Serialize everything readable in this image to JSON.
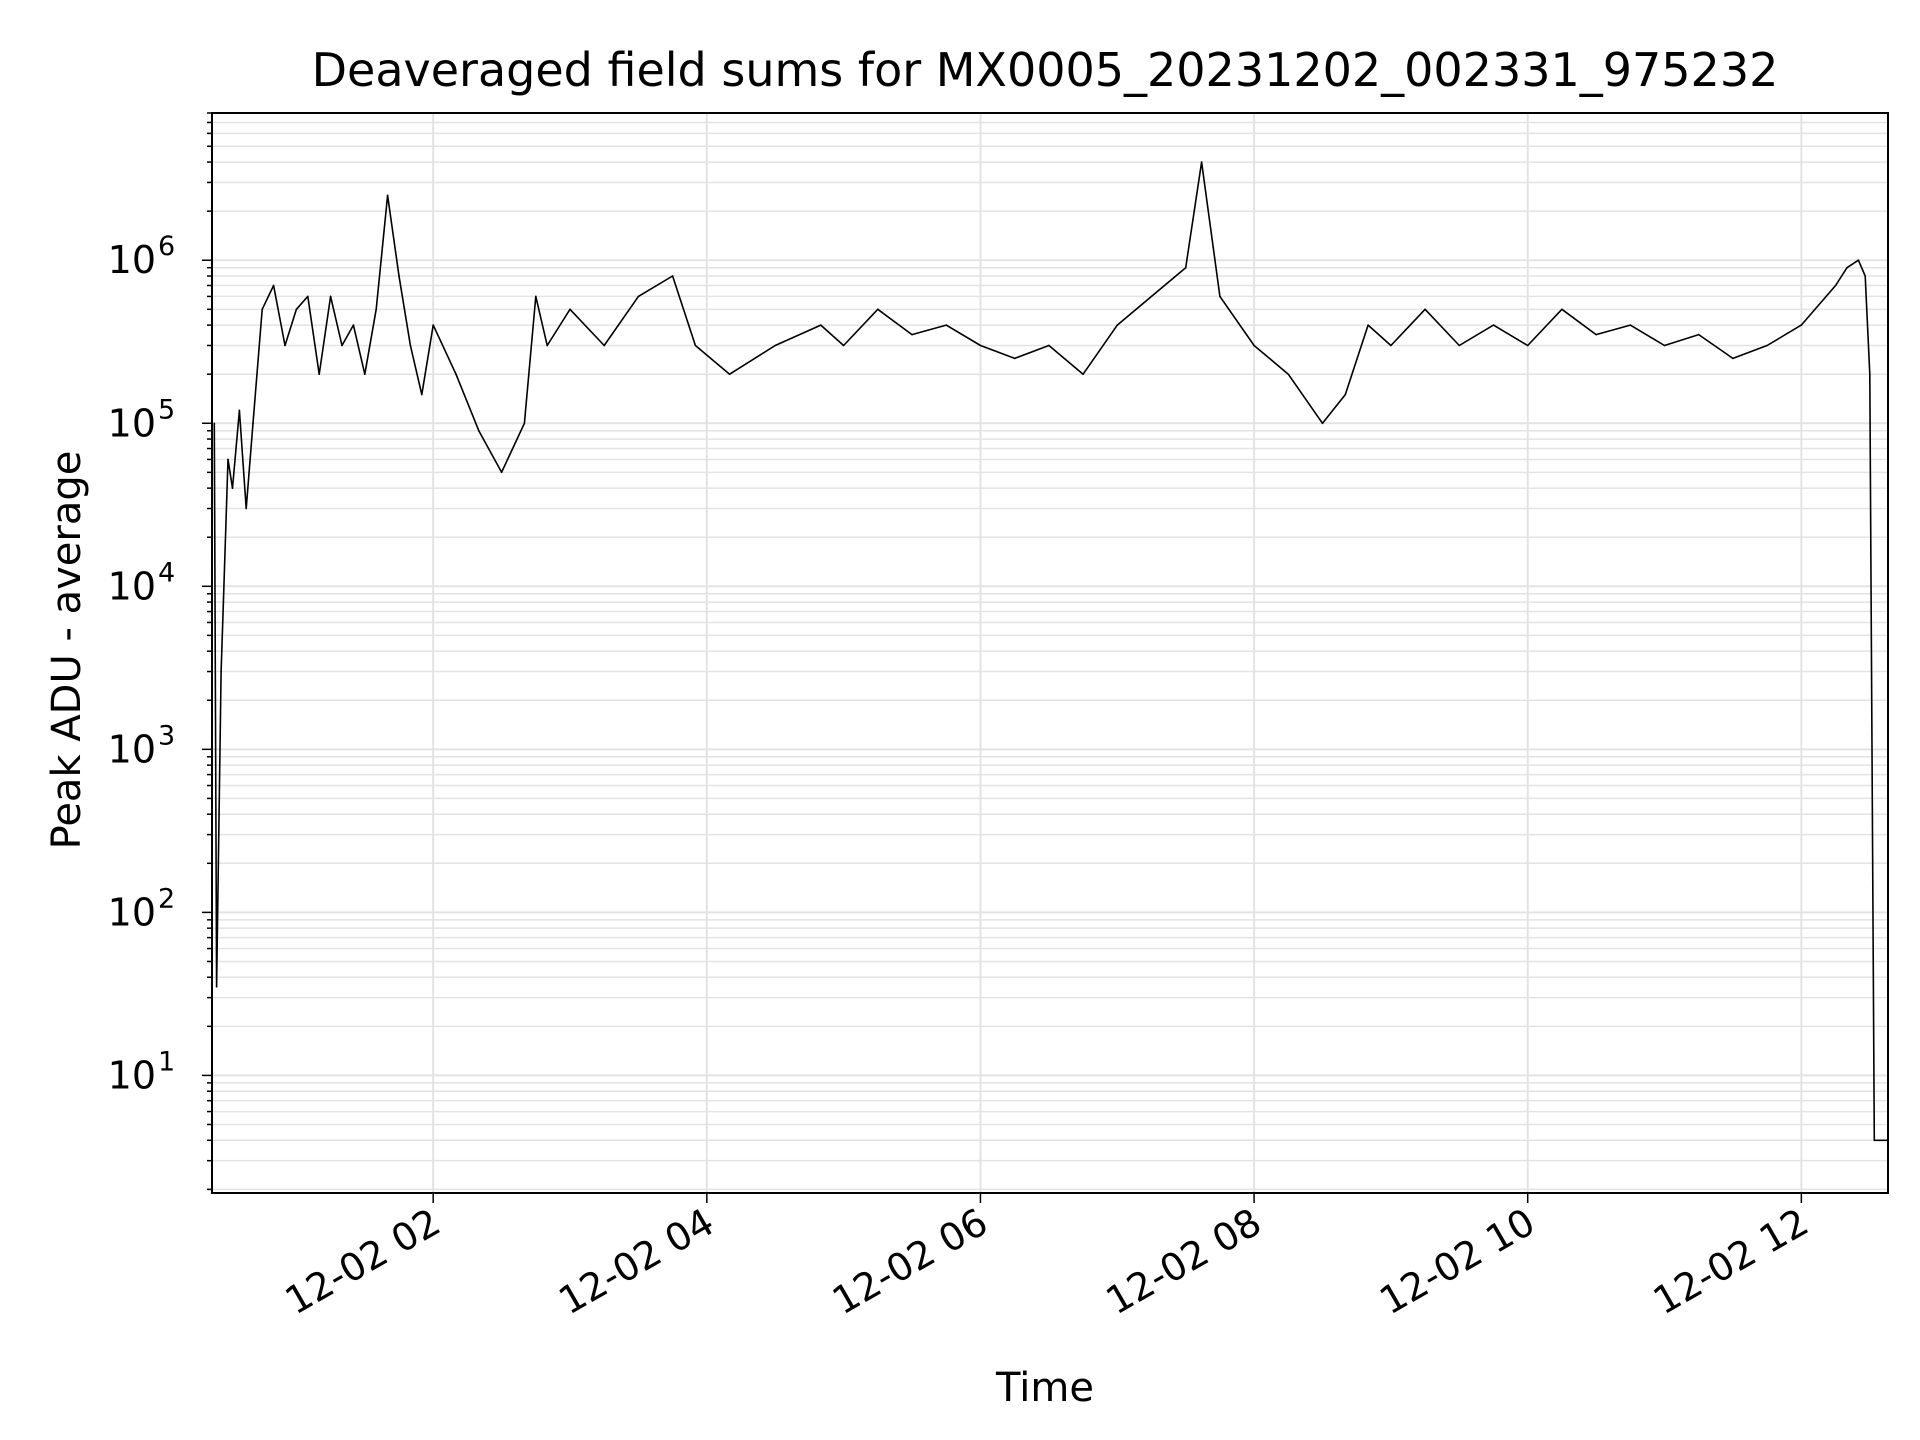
{
  "chart_data": {
    "type": "line",
    "title": "Deaveraged field sums for MX0005_20231202_002331_975232",
    "xlabel": "Time",
    "ylabel": "Peak ADU - average",
    "yscale": "log",
    "ylim": [
      1.9,
      8000000
    ],
    "xlim": [
      "2023-12-02 00:23",
      "2023-12-02 12:38"
    ],
    "grid": true,
    "x_ticks": [
      {
        "value": "2023-12-02 02:00",
        "label": "12-02 02"
      },
      {
        "value": "2023-12-02 04:00",
        "label": "12-02 04"
      },
      {
        "value": "2023-12-02 06:00",
        "label": "12-02 06"
      },
      {
        "value": "2023-12-02 08:00",
        "label": "12-02 08"
      },
      {
        "value": "2023-12-02 10:00",
        "label": "12-02 10"
      },
      {
        "value": "2023-12-02 12:00",
        "label": "12-02 12"
      }
    ],
    "y_ticks": [
      {
        "value": 10,
        "base": "10",
        "exp": "1"
      },
      {
        "value": 100,
        "base": "10",
        "exp": "2"
      },
      {
        "value": 1000,
        "base": "10",
        "exp": "3"
      },
      {
        "value": 10000,
        "base": "10",
        "exp": "4"
      },
      {
        "value": 100000,
        "base": "10",
        "exp": "5"
      },
      {
        "value": 1000000,
        "base": "10",
        "exp": "6"
      }
    ],
    "series": [
      {
        "color": "#000000",
        "x": [
          "2023-12-02 00:24",
          "2023-12-02 00:25",
          "2023-12-02 00:27",
          "2023-12-02 00:28",
          "2023-12-02 00:30",
          "2023-12-02 00:32",
          "2023-12-02 00:35",
          "2023-12-02 00:38",
          "2023-12-02 00:41",
          "2023-12-02 00:45",
          "2023-12-02 00:50",
          "2023-12-02 00:55",
          "2023-12-02 01:00",
          "2023-12-02 01:05",
          "2023-12-02 01:10",
          "2023-12-02 01:15",
          "2023-12-02 01:20",
          "2023-12-02 01:25",
          "2023-12-02 01:30",
          "2023-12-02 01:35",
          "2023-12-02 01:40",
          "2023-12-02 01:45",
          "2023-12-02 01:50",
          "2023-12-02 01:55",
          "2023-12-02 02:00",
          "2023-12-02 02:10",
          "2023-12-02 02:20",
          "2023-12-02 02:30",
          "2023-12-02 02:40",
          "2023-12-02 02:45",
          "2023-12-02 02:50",
          "2023-12-02 03:00",
          "2023-12-02 03:15",
          "2023-12-02 03:30",
          "2023-12-02 03:45",
          "2023-12-02 03:55",
          "2023-12-02 04:10",
          "2023-12-02 04:30",
          "2023-12-02 04:50",
          "2023-12-02 05:00",
          "2023-12-02 05:15",
          "2023-12-02 05:30",
          "2023-12-02 05:45",
          "2023-12-02 06:00",
          "2023-12-02 06:15",
          "2023-12-02 06:30",
          "2023-12-02 06:45",
          "2023-12-02 07:00",
          "2023-12-02 07:15",
          "2023-12-02 07:30",
          "2023-12-02 07:37",
          "2023-12-02 07:45",
          "2023-12-02 08:00",
          "2023-12-02 08:15",
          "2023-12-02 08:30",
          "2023-12-02 08:40",
          "2023-12-02 08:50",
          "2023-12-02 09:00",
          "2023-12-02 09:15",
          "2023-12-02 09:30",
          "2023-12-02 09:45",
          "2023-12-02 10:00",
          "2023-12-02 10:15",
          "2023-12-02 10:30",
          "2023-12-02 10:45",
          "2023-12-02 11:00",
          "2023-12-02 11:15",
          "2023-12-02 11:30",
          "2023-12-02 11:45",
          "2023-12-02 12:00",
          "2023-12-02 12:15",
          "2023-12-02 12:20",
          "2023-12-02 12:25",
          "2023-12-02 12:28",
          "2023-12-02 12:30",
          "2023-12-02 12:32",
          "2023-12-02 12:33",
          "2023-12-02 12:38"
        ],
        "y": [
          100000,
          35,
          3000,
          8000,
          60000,
          40000,
          120000,
          30000,
          100000,
          500000,
          700000,
          300000,
          500000,
          600000,
          200000,
          600000,
          300000,
          400000,
          200000,
          500000,
          2500000,
          800000,
          300000,
          150000,
          400000,
          200000,
          90000,
          50000,
          100000,
          600000,
          300000,
          500000,
          300000,
          600000,
          800000,
          300000,
          200000,
          300000,
          400000,
          300000,
          500000,
          350000,
          400000,
          300000,
          250000,
          300000,
          200000,
          400000,
          600000,
          900000,
          4000000,
          600000,
          300000,
          200000,
          100000,
          150000,
          400000,
          300000,
          500000,
          300000,
          400000,
          300000,
          500000,
          350000,
          400000,
          300000,
          350000,
          250000,
          300000,
          400000,
          700000,
          900000,
          1000000,
          800000,
          200000,
          4,
          4,
          4
        ]
      }
    ]
  }
}
